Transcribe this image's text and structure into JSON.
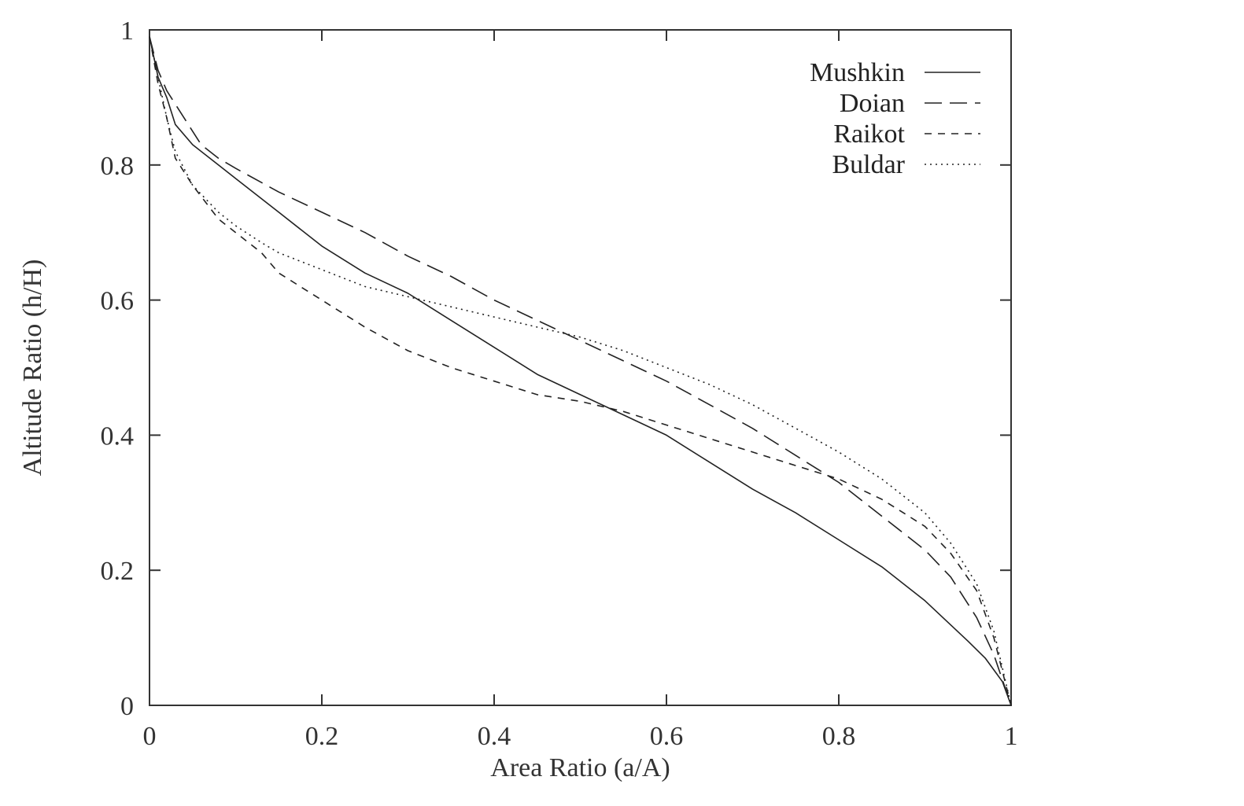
{
  "chart_data": {
    "type": "line",
    "title": "",
    "xlabel": "Area Ratio (a/A)",
    "ylabel": "Altitude Ratio (h/H)",
    "xlim": [
      0,
      1
    ],
    "ylim": [
      0,
      1
    ],
    "xticks": [
      0,
      0.2,
      0.4,
      0.6,
      0.8,
      1
    ],
    "yticks": [
      0,
      0.2,
      0.4,
      0.6,
      0.8,
      1
    ],
    "xtick_labels": [
      "0",
      "0.2",
      "0.4",
      "0.6",
      "0.8",
      "1"
    ],
    "ytick_labels": [
      "0",
      "0.2",
      "0.4",
      "0.6",
      "0.8",
      "1"
    ],
    "grid": false,
    "legend_position": "top-right",
    "series": [
      {
        "name": "Mushkin",
        "style": "solid",
        "color": "#222222",
        "points": [
          [
            0,
            0.99
          ],
          [
            0.01,
            0.93
          ],
          [
            0.02,
            0.9
          ],
          [
            0.03,
            0.86
          ],
          [
            0.05,
            0.83
          ],
          [
            0.08,
            0.8
          ],
          [
            0.1,
            0.78
          ],
          [
            0.15,
            0.73
          ],
          [
            0.2,
            0.68
          ],
          [
            0.25,
            0.64
          ],
          [
            0.3,
            0.61
          ],
          [
            0.35,
            0.57
          ],
          [
            0.4,
            0.53
          ],
          [
            0.45,
            0.49
          ],
          [
            0.5,
            0.46
          ],
          [
            0.55,
            0.43
          ],
          [
            0.6,
            0.4
          ],
          [
            0.65,
            0.36
          ],
          [
            0.7,
            0.32
          ],
          [
            0.75,
            0.285
          ],
          [
            0.8,
            0.245
          ],
          [
            0.85,
            0.205
          ],
          [
            0.9,
            0.155
          ],
          [
            0.95,
            0.095
          ],
          [
            0.97,
            0.07
          ],
          [
            0.99,
            0.035
          ],
          [
            1.0,
            0.0
          ]
        ]
      },
      {
        "name": "Doian",
        "style": "longdash",
        "color": "#222222",
        "points": [
          [
            0,
            0.99
          ],
          [
            0.01,
            0.94
          ],
          [
            0.02,
            0.91
          ],
          [
            0.04,
            0.87
          ],
          [
            0.06,
            0.83
          ],
          [
            0.08,
            0.81
          ],
          [
            0.1,
            0.795
          ],
          [
            0.15,
            0.76
          ],
          [
            0.2,
            0.73
          ],
          [
            0.25,
            0.7
          ],
          [
            0.3,
            0.665
          ],
          [
            0.35,
            0.635
          ],
          [
            0.4,
            0.6
          ],
          [
            0.45,
            0.57
          ],
          [
            0.5,
            0.54
          ],
          [
            0.55,
            0.51
          ],
          [
            0.6,
            0.48
          ],
          [
            0.65,
            0.445
          ],
          [
            0.7,
            0.41
          ],
          [
            0.75,
            0.37
          ],
          [
            0.8,
            0.33
          ],
          [
            0.85,
            0.28
          ],
          [
            0.9,
            0.23
          ],
          [
            0.93,
            0.19
          ],
          [
            0.96,
            0.13
          ],
          [
            0.98,
            0.075
          ],
          [
            1.0,
            0.0
          ]
        ]
      },
      {
        "name": "Raikot",
        "style": "shortdash",
        "color": "#222222",
        "points": [
          [
            0,
            0.99
          ],
          [
            0.01,
            0.92
          ],
          [
            0.02,
            0.87
          ],
          [
            0.03,
            0.81
          ],
          [
            0.05,
            0.77
          ],
          [
            0.08,
            0.72
          ],
          [
            0.1,
            0.7
          ],
          [
            0.13,
            0.67
          ],
          [
            0.15,
            0.64
          ],
          [
            0.2,
            0.6
          ],
          [
            0.25,
            0.56
          ],
          [
            0.3,
            0.525
          ],
          [
            0.35,
            0.5
          ],
          [
            0.4,
            0.48
          ],
          [
            0.45,
            0.46
          ],
          [
            0.5,
            0.45
          ],
          [
            0.55,
            0.435
          ],
          [
            0.6,
            0.415
          ],
          [
            0.65,
            0.395
          ],
          [
            0.7,
            0.375
          ],
          [
            0.75,
            0.355
          ],
          [
            0.8,
            0.335
          ],
          [
            0.85,
            0.305
          ],
          [
            0.9,
            0.265
          ],
          [
            0.93,
            0.225
          ],
          [
            0.96,
            0.17
          ],
          [
            0.98,
            0.1
          ],
          [
            1.0,
            0.0
          ]
        ]
      },
      {
        "name": "Buldar",
        "style": "dotted",
        "color": "#222222",
        "points": [
          [
            0,
            0.99
          ],
          [
            0.01,
            0.93
          ],
          [
            0.02,
            0.87
          ],
          [
            0.03,
            0.82
          ],
          [
            0.05,
            0.77
          ],
          [
            0.08,
            0.73
          ],
          [
            0.1,
            0.71
          ],
          [
            0.13,
            0.685
          ],
          [
            0.15,
            0.67
          ],
          [
            0.2,
            0.645
          ],
          [
            0.25,
            0.62
          ],
          [
            0.3,
            0.605
          ],
          [
            0.35,
            0.59
          ],
          [
            0.4,
            0.575
          ],
          [
            0.45,
            0.56
          ],
          [
            0.5,
            0.545
          ],
          [
            0.55,
            0.525
          ],
          [
            0.6,
            0.5
          ],
          [
            0.65,
            0.475
          ],
          [
            0.7,
            0.445
          ],
          [
            0.75,
            0.41
          ],
          [
            0.8,
            0.375
          ],
          [
            0.85,
            0.335
          ],
          [
            0.9,
            0.285
          ],
          [
            0.93,
            0.24
          ],
          [
            0.96,
            0.18
          ],
          [
            0.98,
            0.11
          ],
          [
            1.0,
            0.0
          ]
        ]
      }
    ]
  }
}
